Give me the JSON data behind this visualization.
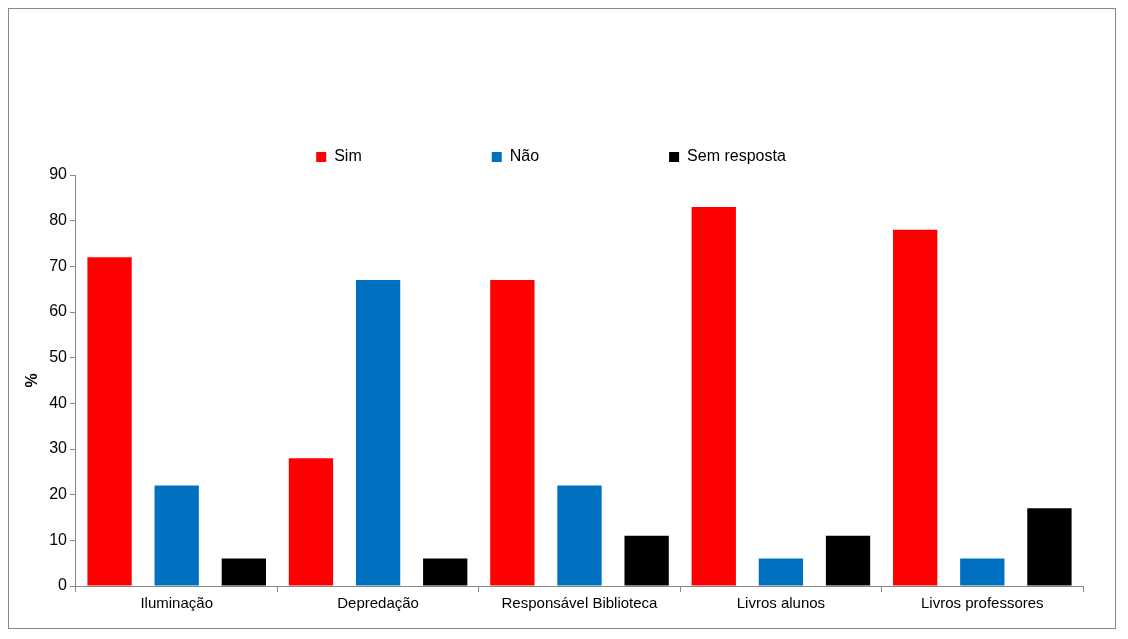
{
  "chart_data": {
    "type": "bar",
    "ylabel": "%",
    "categories": [
      "Iluminação",
      "Depredação",
      "Responsável Biblioteca",
      "Livros alunos",
      "Livros professores"
    ],
    "series": [
      {
        "name": "Sim",
        "color": "#ff0000",
        "values": [
          72,
          28,
          67,
          83,
          78
        ]
      },
      {
        "name": "Não",
        "color": "#0070c0",
        "values": [
          22,
          67,
          22,
          6,
          6
        ]
      },
      {
        "name": "Sem resposta",
        "color": "#000000",
        "values": [
          6,
          6,
          11,
          11,
          17
        ]
      }
    ],
    "ylim": [
      0,
      90
    ],
    "yticks": [
      0,
      10,
      20,
      30,
      40,
      50,
      60,
      70,
      80,
      90
    ],
    "grid": false,
    "legend": "top"
  }
}
